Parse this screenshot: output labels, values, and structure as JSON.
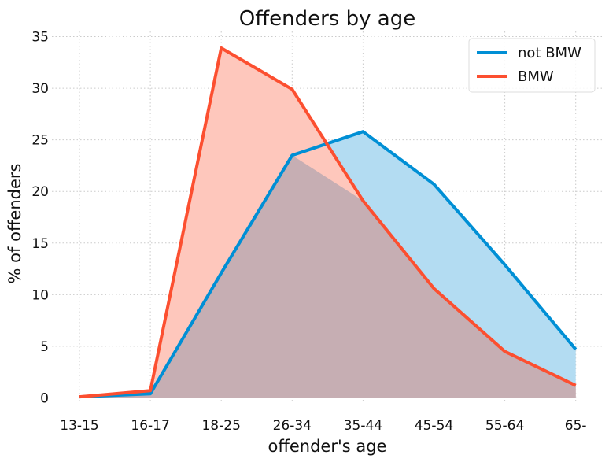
{
  "chart_data": {
    "type": "area",
    "title": "Offenders by age",
    "xlabel": "offender's age",
    "ylabel": "% of offenders",
    "categories": [
      "13-15",
      "16-17",
      "18-25",
      "26-34",
      "35-44",
      "45-54",
      "55-64",
      "65-"
    ],
    "ylim": [
      -0.5,
      35.5
    ],
    "yticks": [
      0,
      5,
      10,
      15,
      20,
      25,
      30,
      35
    ],
    "grid": true,
    "legend_position": "top-right",
    "series": [
      {
        "name": "not BMW",
        "color": "#008fd5",
        "fill": "#b3dcf2",
        "values": [
          0.1,
          0.4,
          12.1,
          23.5,
          25.8,
          20.7,
          12.9,
          4.7
        ]
      },
      {
        "name": "BMW",
        "color": "#fc4f30",
        "fill": "#fec7bc",
        "values": [
          0.1,
          0.7,
          33.9,
          29.9,
          19.1,
          10.6,
          4.5,
          1.2
        ]
      }
    ],
    "overlap_fill": "#c6aeb3"
  }
}
